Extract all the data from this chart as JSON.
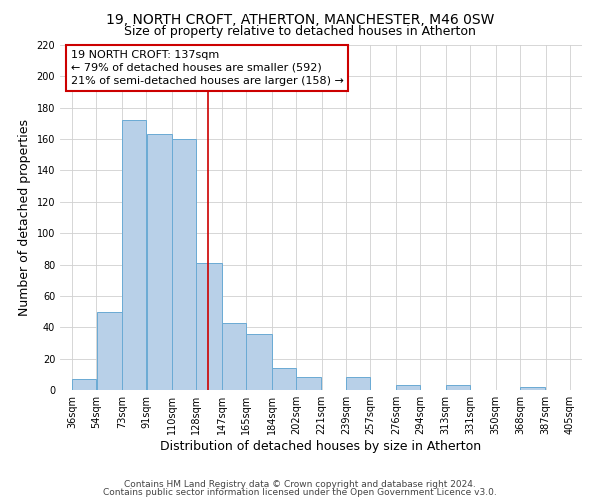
{
  "title_line1": "19, NORTH CROFT, ATHERTON, MANCHESTER, M46 0SW",
  "title_line2": "Size of property relative to detached houses in Atherton",
  "xlabel": "Distribution of detached houses by size in Atherton",
  "ylabel": "Number of detached properties",
  "bar_left_edges": [
    36,
    54,
    73,
    91,
    110,
    128,
    147,
    165,
    184,
    202,
    221,
    239,
    257,
    276,
    294,
    313,
    331,
    350,
    368,
    387
  ],
  "bar_widths": [
    18,
    19,
    18,
    19,
    18,
    19,
    18,
    19,
    18,
    19,
    18,
    18,
    19,
    18,
    19,
    18,
    19,
    18,
    19,
    18
  ],
  "bar_heights": [
    7,
    50,
    172,
    163,
    160,
    81,
    43,
    36,
    14,
    8,
    0,
    8,
    0,
    3,
    0,
    3,
    0,
    0,
    2,
    0
  ],
  "bar_color": "#b8d0e8",
  "bar_edge_color": "#6aaad4",
  "reference_x": 137,
  "reference_line_color": "#cc0000",
  "annotation_line1": "19 NORTH CROFT: 137sqm",
  "annotation_line2": "← 79% of detached houses are smaller (592)",
  "annotation_line3": "21% of semi-detached houses are larger (158) →",
  "annotation_box_color": "#ffffff",
  "annotation_box_edge_color": "#cc0000",
  "tick_labels": [
    "36sqm",
    "54sqm",
    "73sqm",
    "91sqm",
    "110sqm",
    "128sqm",
    "147sqm",
    "165sqm",
    "184sqm",
    "202sqm",
    "221sqm",
    "239sqm",
    "257sqm",
    "276sqm",
    "294sqm",
    "313sqm",
    "331sqm",
    "350sqm",
    "368sqm",
    "387sqm",
    "405sqm"
  ],
  "tick_positions": [
    36,
    54,
    73,
    91,
    110,
    128,
    147,
    165,
    184,
    202,
    221,
    239,
    257,
    276,
    294,
    313,
    331,
    350,
    368,
    387,
    405
  ],
  "xlim": [
    27,
    414
  ],
  "ylim": [
    0,
    220
  ],
  "yticks": [
    0,
    20,
    40,
    60,
    80,
    100,
    120,
    140,
    160,
    180,
    200,
    220
  ],
  "grid_color": "#d0d0d0",
  "background_color": "#ffffff",
  "footer_line1": "Contains HM Land Registry data © Crown copyright and database right 2024.",
  "footer_line2": "Contains public sector information licensed under the Open Government Licence v3.0.",
  "title_fontsize": 10,
  "subtitle_fontsize": 9,
  "axis_label_fontsize": 9,
  "tick_fontsize": 7,
  "annotation_fontsize": 8,
  "footer_fontsize": 6.5
}
